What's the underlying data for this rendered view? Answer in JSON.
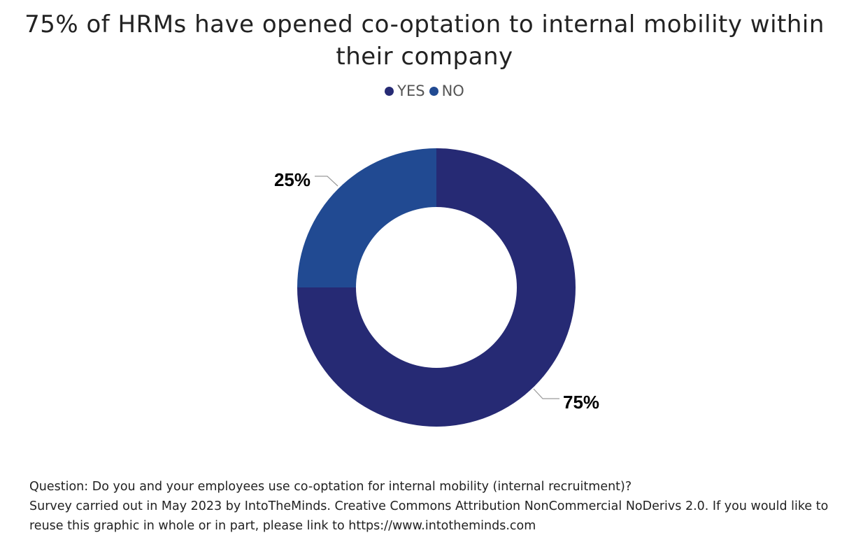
{
  "chart_data": {
    "type": "pie",
    "style": "donut",
    "title": "75% of HRMs have opened co-optation to internal mobility within their company",
    "categories": [
      "YES",
      "NO"
    ],
    "values": [
      75,
      25
    ],
    "unit": "%",
    "data_labels": [
      "75%",
      "25%"
    ],
    "colors": [
      "#262a74",
      "#214a92"
    ],
    "legend": {
      "position": "top",
      "entries": [
        "YES",
        "NO"
      ]
    }
  },
  "footnote": {
    "question": "Question: Do you and your employees use co-optation for internal mobility (internal recruitment)?",
    "source": "Survey carried out in May 2023 by IntoTheMinds. Creative Commons Attribution NonCommercial NoDerivs 2.0. If you would like to reuse this graphic in whole or in part, please link to https://www.intotheminds.com"
  }
}
